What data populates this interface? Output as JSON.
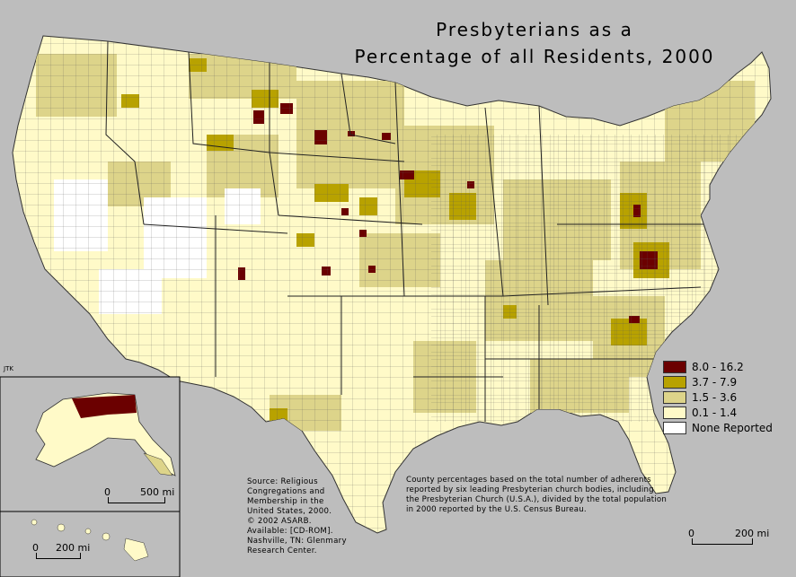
{
  "title": {
    "line1": "Presbyterians as a",
    "line2": "Percentage of all Residents, 2000"
  },
  "credit": "JTK",
  "legend": {
    "items": [
      {
        "label": "8.0 - 16.2",
        "color": "#6b0000"
      },
      {
        "label": "3.7 - 7.9",
        "color": "#b8a200"
      },
      {
        "label": "1.5 - 3.6",
        "color": "#ddd48a"
      },
      {
        "label": "0.1 - 1.4",
        "color": "#fffac8"
      },
      {
        "label": "None Reported",
        "color": "#ffffff"
      }
    ]
  },
  "source_note": "Source:  Religious\nCongregations and\nMembership in the\nUnited States, 2000.\n© 2002 ASARB.\nAvailable: [CD-ROM].\nNashville, TN: Glenmary\nResearch Center.",
  "county_note": "County percentages based on the total number of adherents reported by six leading Presbyterian church bodies, including the Presbyterian Church (U.S.A.), divided by the total population in 2000 reported by the U.S. Census Bureau.",
  "scales": {
    "alaska": {
      "zero": "0",
      "distance": "500 mi"
    },
    "hawaii": {
      "zero": "0",
      "distance": "200 mi"
    },
    "main": {
      "zero": "0",
      "distance": "200 mi"
    }
  },
  "colors": {
    "water": "#bdbdbd",
    "background": "#ffffff",
    "border": "#444444"
  }
}
